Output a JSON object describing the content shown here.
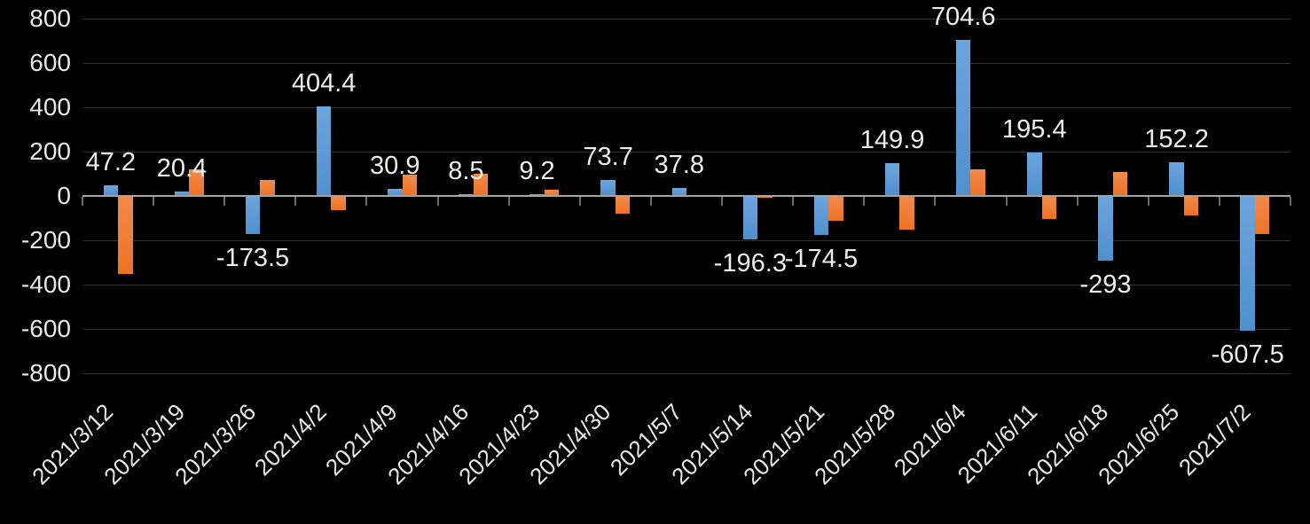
{
  "chart_data": {
    "type": "bar",
    "title": "",
    "legend": "none",
    "grid": true,
    "background_color": "#000000",
    "text_color": "#e8e8e6",
    "categories": [
      "2021/3/12",
      "2021/3/19",
      "2021/3/26",
      "2021/4/2",
      "2021/4/9",
      "2021/4/16",
      "2021/4/23",
      "2021/4/30",
      "2021/5/7",
      "2021/5/14",
      "2021/5/21",
      "2021/5/28",
      "2021/6/4",
      "2021/6/11",
      "2021/6/18",
      "2021/6/25",
      "2021/7/2"
    ],
    "series": [
      {
        "name": "blue-series",
        "color": "#5b9bd5",
        "values": [
          47.2,
          20.4,
          -173.5,
          404.4,
          30.9,
          8.5,
          9.2,
          73.7,
          37.8,
          -196.3,
          -174.5,
          149.9,
          704.6,
          195.4,
          -293,
          152.2,
          -607.5
        ],
        "data_labels": [
          "47.2",
          "20.4",
          "-173.5",
          "404.4",
          "30.9",
          "8.5",
          "9.2",
          "73.7",
          "37.8",
          "-196.3",
          "-174.5",
          "149.9",
          "704.6",
          "195.4",
          "-293",
          "152.2",
          "-607.5"
        ]
      },
      {
        "name": "orange-series",
        "color": "#ed7d31",
        "values": [
          -350,
          120,
          73,
          -62,
          95,
          100,
          30,
          -80,
          0,
          -8,
          -112,
          -150,
          120,
          -103,
          108,
          -89,
          -172
        ],
        "data_labels": null
      }
    ],
    "y_axis": {
      "min": -800,
      "max": 800,
      "tick_interval": 200,
      "tick_labels": [
        "800",
        "600",
        "400",
        "200",
        "0",
        "-200",
        "-400",
        "-600",
        "-800"
      ]
    },
    "x_axis": {
      "label_rotation_deg": 45,
      "labels_position": "low"
    }
  }
}
